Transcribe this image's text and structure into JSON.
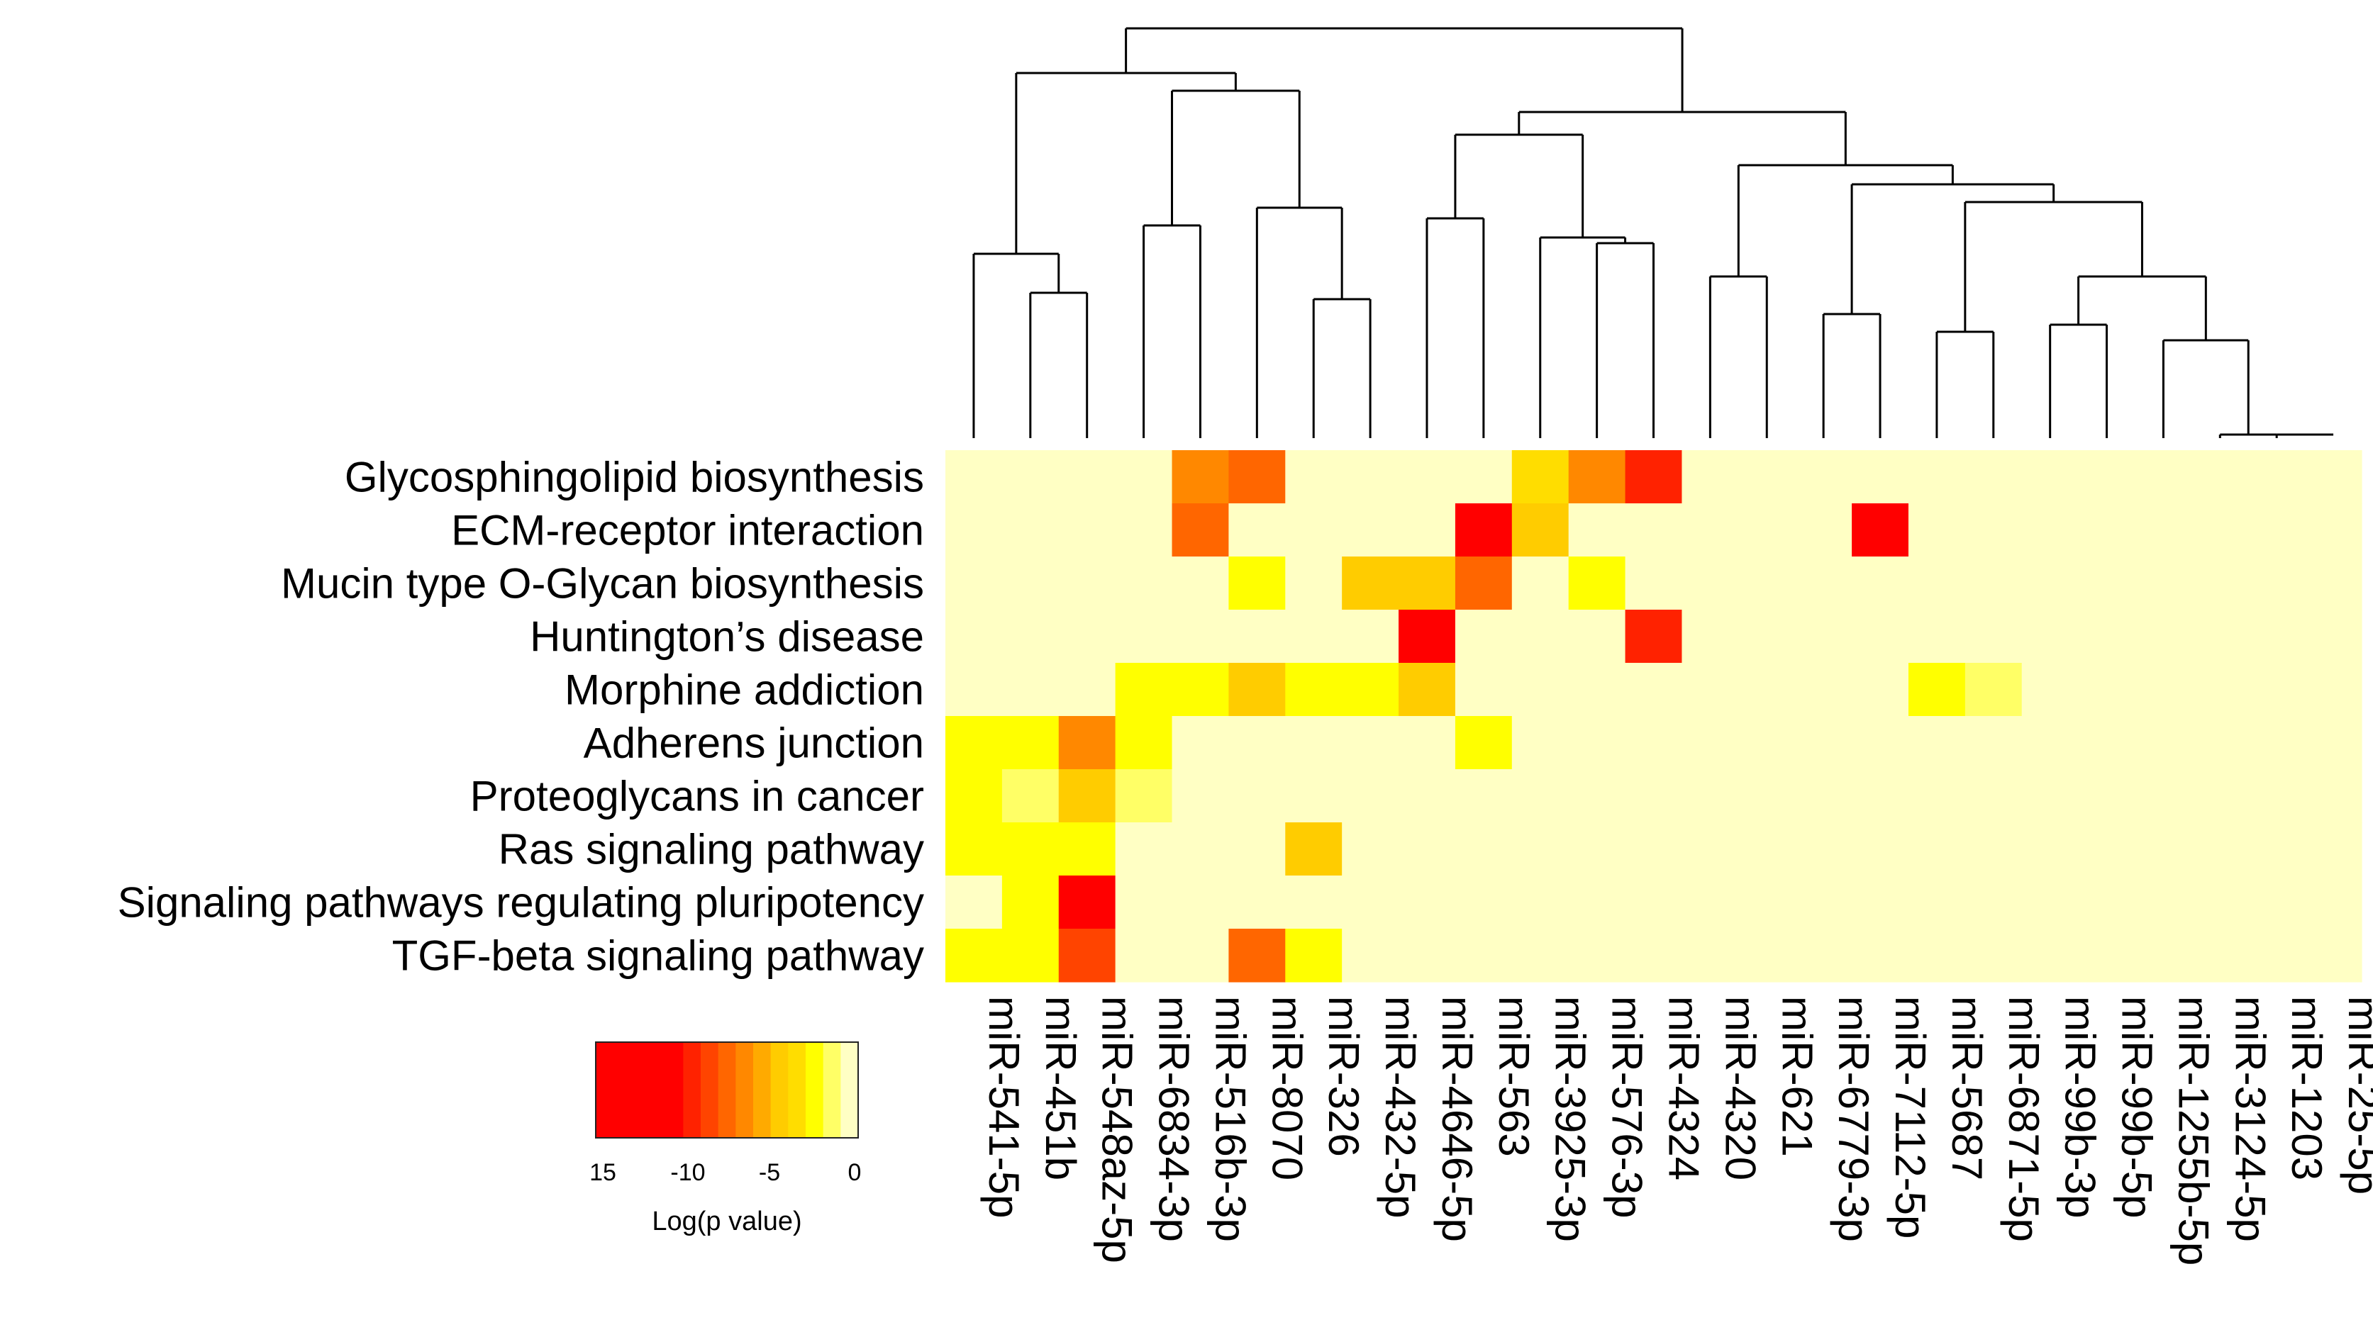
{
  "chart_data": {
    "type": "heatmap",
    "rows": [
      "Glycosphingolipid biosynthesis",
      "ECM-receptor interaction",
      "Mucin type O-Glycan biosynthesis",
      "Huntington’s disease",
      "Morphine addiction",
      "Adherens junction",
      "Proteoglycans in cancer",
      "Ras signaling pathway",
      "Signaling pathways regulating pluripotency",
      "TGF-beta signaling pathway"
    ],
    "columns": [
      "miR-541-5p",
      "miR-451b",
      "miR-548az-5p",
      "miR-6834-3p",
      "miR-516b-3p",
      "miR-8070",
      "miR-326",
      "miR-432-5p",
      "miR-4646-5p",
      "miR-563",
      "miR-3925-3p",
      "miR-576-3p",
      "miR-4324",
      "miR-4320",
      "miR-621",
      "miR-6779-3p",
      "miR-7112-5p",
      "miR-5687",
      "miR-6871-5p",
      "miR-99b-3p",
      "miR-99b-5p",
      "miR-1255b-5p",
      "miR-3124-5p",
      "miR-1203",
      "miR-25-5p"
    ],
    "values": [
      [
        0,
        0,
        0,
        0,
        -6,
        -7,
        0,
        0,
        0,
        0,
        -3,
        -6,
        -10,
        0,
        0,
        0,
        0,
        0,
        0,
        0,
        0,
        0,
        0,
        0,
        0
      ],
      [
        0,
        0,
        0,
        0,
        -7,
        0,
        0,
        0,
        0,
        -15,
        -4,
        0,
        0,
        0,
        0,
        0,
        -13,
        0,
        0,
        0,
        0,
        0,
        0,
        0,
        0
      ],
      [
        0,
        0,
        0,
        0,
        0,
        -2,
        0,
        -4,
        -4,
        -8,
        0,
        -2,
        0,
        0,
        0,
        0,
        0,
        0,
        0,
        0,
        0,
        0,
        0,
        0,
        0
      ],
      [
        0,
        0,
        0,
        0,
        0,
        0,
        0,
        0,
        -12,
        0,
        0,
        0,
        -10,
        0,
        0,
        0,
        0,
        0,
        0,
        0,
        0,
        0,
        0,
        0,
        0
      ],
      [
        0,
        0,
        0,
        -2,
        -2,
        -4,
        -2,
        -2,
        -4,
        0,
        0,
        0,
        0,
        0,
        0,
        0,
        0,
        -2,
        -1,
        0,
        0,
        0,
        0,
        0,
        0
      ],
      [
        -2,
        -2,
        -6,
        -2,
        0,
        0,
        0,
        0,
        0,
        -2,
        0,
        0,
        0,
        0,
        0,
        0,
        0,
        0,
        0,
        0,
        0,
        0,
        0,
        0,
        0
      ],
      [
        -2,
        -1,
        -4,
        -1,
        0,
        0,
        0,
        0,
        0,
        0,
        0,
        0,
        0,
        0,
        0,
        0,
        0,
        0,
        0,
        0,
        0,
        0,
        0,
        0,
        0
      ],
      [
        -2,
        -2,
        -2,
        0,
        0,
        0,
        -4,
        0,
        0,
        0,
        0,
        0,
        0,
        0,
        0,
        0,
        0,
        0,
        0,
        0,
        0,
        0,
        0,
        0,
        0
      ],
      [
        0,
        -2,
        -14,
        0,
        0,
        0,
        0,
        0,
        0,
        0,
        0,
        0,
        0,
        0,
        0,
        0,
        0,
        0,
        0,
        0,
        0,
        0,
        0,
        0,
        0
      ],
      [
        -2,
        -2,
        -9,
        0,
        0,
        -7,
        -2,
        0,
        0,
        0,
        0,
        0,
        0,
        0,
        0,
        0,
        0,
        0,
        0,
        0,
        0,
        0,
        0,
        0,
        0
      ]
    ],
    "color_scale": {
      "min": -15,
      "max": 0,
      "colors": [
        "#ff0000",
        "#ff0000",
        "#ff0000",
        "#ff0000",
        "#ff0000",
        "#ff2200",
        "#ff4400",
        "#ff6600",
        "#ff8800",
        "#ffaa00",
        "#ffcc00",
        "#ffdd00",
        "#ffff00",
        "#ffff66",
        "#ffffc4"
      ]
    },
    "legend": {
      "ticks": [
        "15",
        "-10",
        "-5",
        "0"
      ],
      "title": "Log(p value)"
    },
    "dendrogram": "column clustering tree (hierarchical) drawn above the heatmap"
  }
}
